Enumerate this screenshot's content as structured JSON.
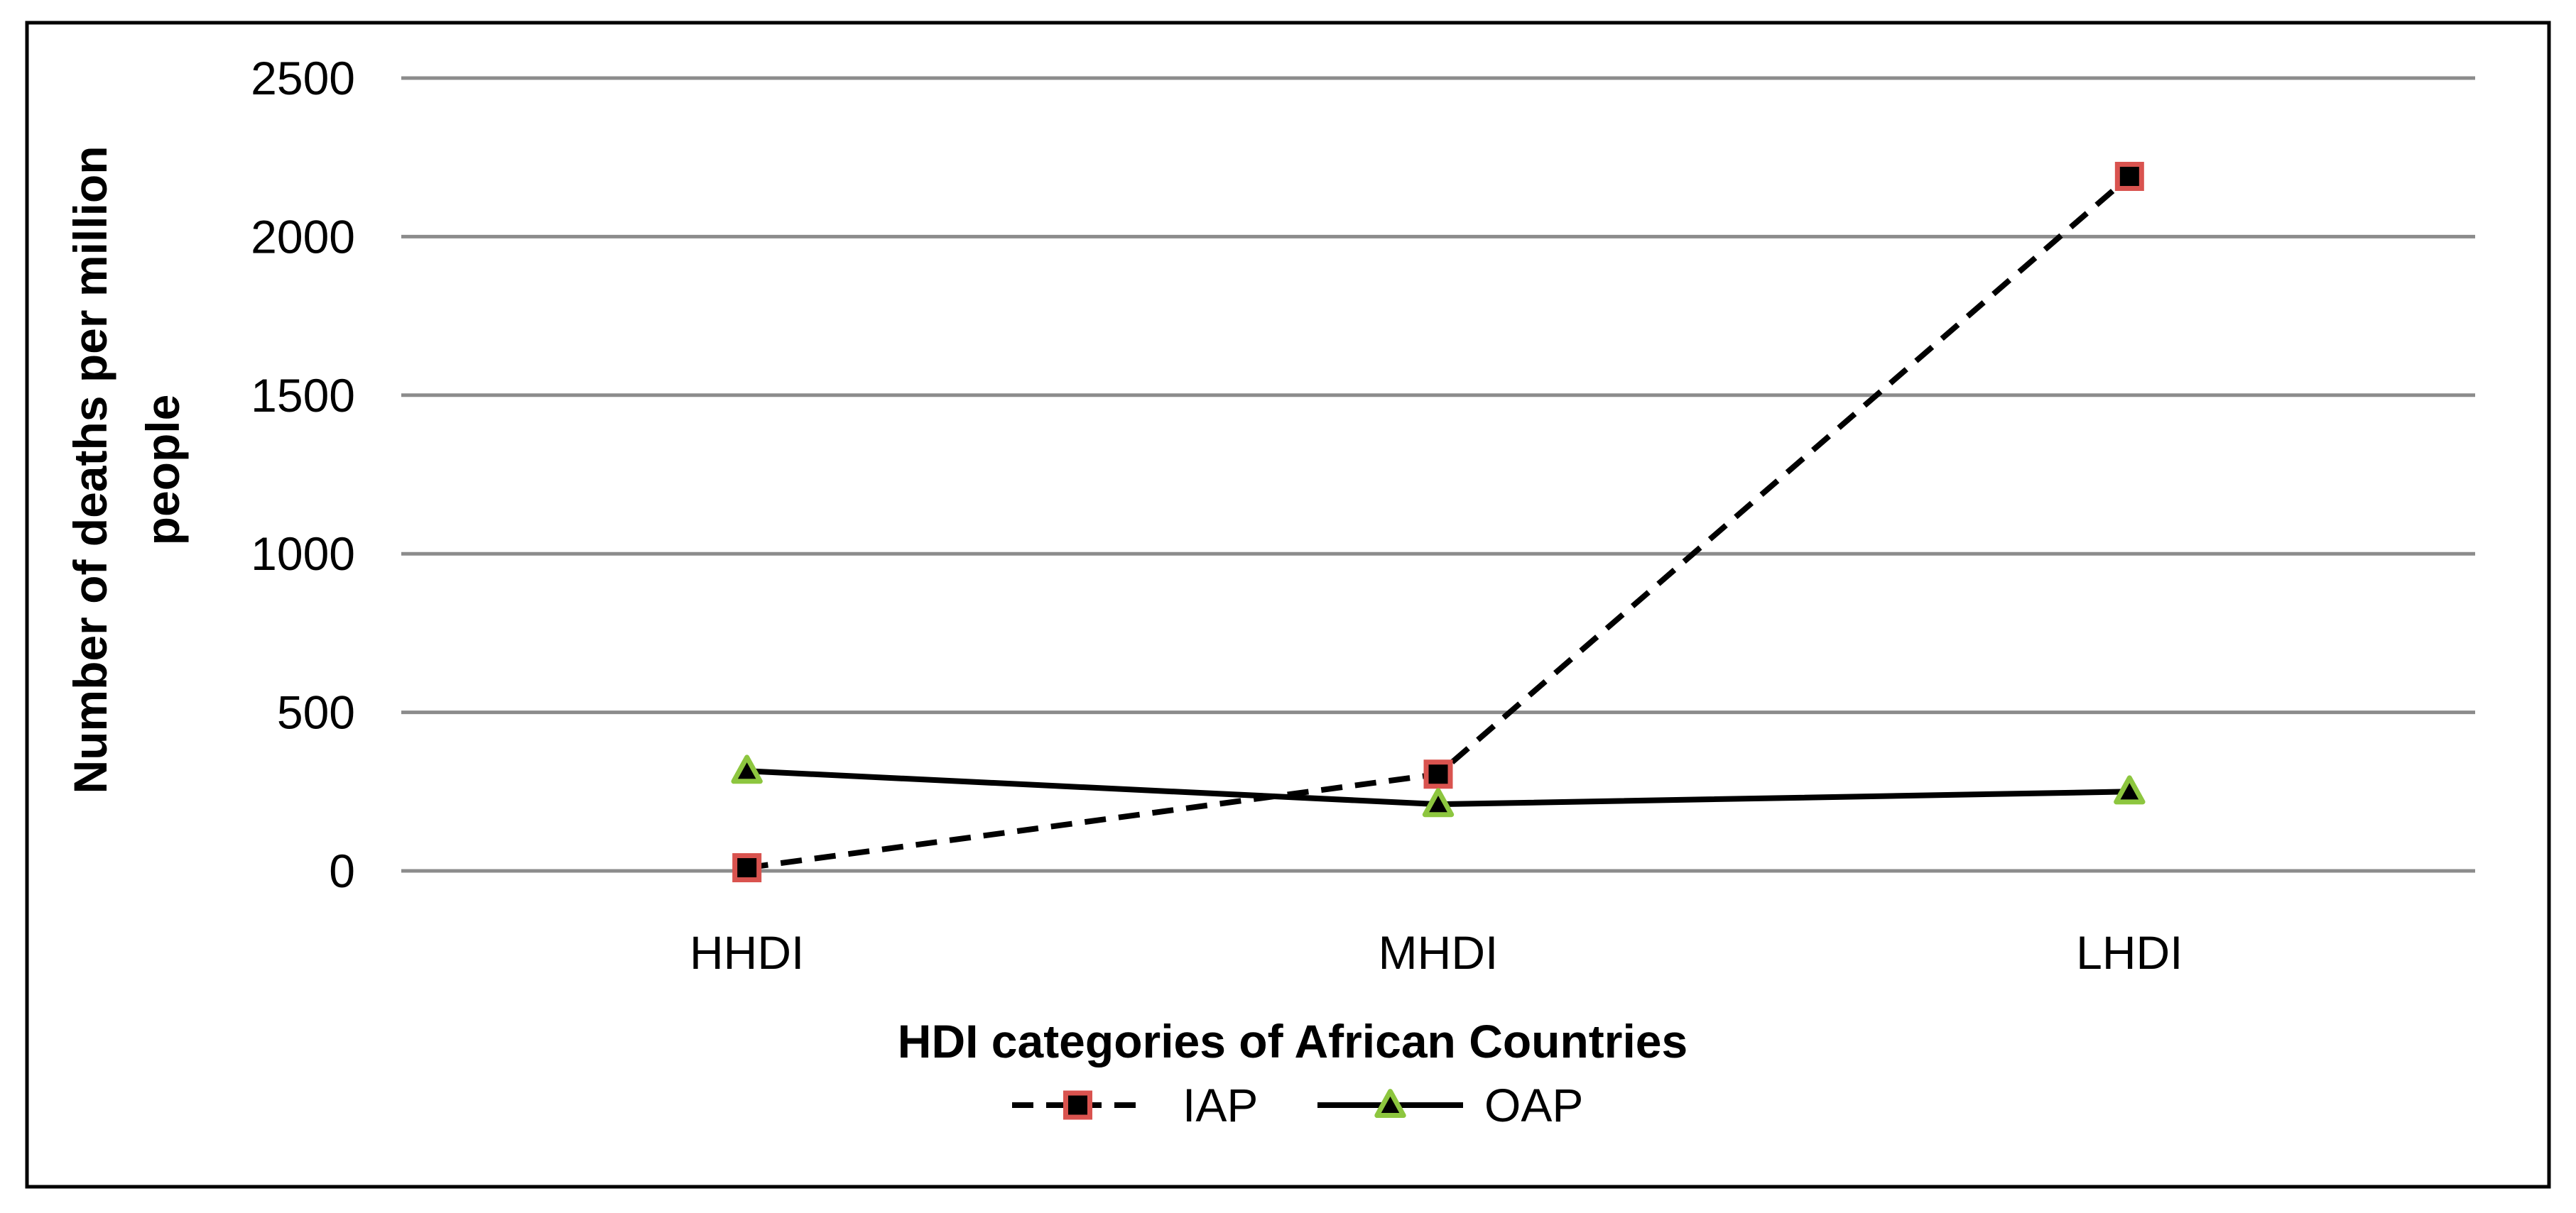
{
  "chart_data": {
    "type": "line",
    "title": "",
    "xlabel": "HDI categories of African Countries",
    "ylabel_lines": [
      "Number of deaths per million",
      "people"
    ],
    "categories": [
      "HHDI",
      "MHDI",
      "LHDI"
    ],
    "series": [
      {
        "name": "IAP",
        "values": [
          10,
          305,
          2190
        ],
        "line_style": "dashed",
        "marker": "square",
        "marker_fill": "#000000",
        "marker_edge": "#d9534f",
        "line_color": "#000000"
      },
      {
        "name": "OAP",
        "values": [
          315,
          210,
          250
        ],
        "line_style": "solid",
        "marker": "triangle",
        "marker_fill": "#000000",
        "marker_edge": "#8dc63f",
        "line_color": "#000000"
      }
    ],
    "ylim": [
      0,
      2500
    ],
    "yticks": [
      0,
      500,
      1000,
      1500,
      2000,
      2500
    ],
    "grid": true,
    "gridline_color": "#8c8c8c",
    "legend_position": "bottom-center"
  }
}
